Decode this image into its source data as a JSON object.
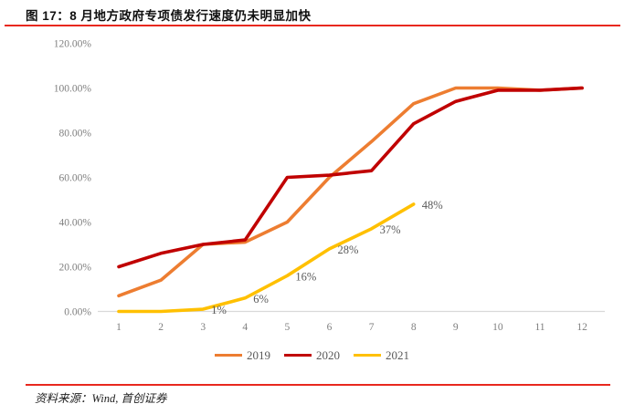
{
  "title": {
    "text": "图 17：8 月地方政府专项债发行速度仍未明显加快"
  },
  "colors": {
    "accent_red": "#E8281E",
    "axis_line": "#D9D9D9",
    "tick_text": "#7F7F7F",
    "label_text": "#595959"
  },
  "chart_data": {
    "type": "line",
    "title": "",
    "xlabel": "",
    "ylabel": "",
    "categories": [
      "1",
      "2",
      "3",
      "4",
      "5",
      "6",
      "7",
      "8",
      "9",
      "10",
      "11",
      "12"
    ],
    "ylim": [
      0,
      120
    ],
    "ytick_values": [
      0,
      20,
      40,
      60,
      80,
      100,
      120
    ],
    "ytick_labels": [
      "0.00%",
      "20.00%",
      "40.00%",
      "60.00%",
      "80.00%",
      "100.00%",
      "120.00%"
    ],
    "grid": false,
    "legend_position": "bottom",
    "series": [
      {
        "name": "2019",
        "color": "#ED7D31",
        "values": [
          7,
          14,
          30,
          31,
          40,
          60,
          76,
          93,
          100,
          100,
          99,
          100
        ],
        "data_labels": []
      },
      {
        "name": "2020",
        "color": "#C00000",
        "values": [
          20,
          26,
          30,
          32,
          60,
          61,
          63,
          84,
          94,
          99,
          99,
          100
        ],
        "data_labels": []
      },
      {
        "name": "2021",
        "color": "#FFC000",
        "values": [
          0,
          0,
          1,
          6,
          16,
          28,
          37,
          48
        ],
        "data_labels": [
          "",
          "",
          "1%",
          "6%",
          "16%",
          "28%",
          "37%",
          "48%"
        ]
      }
    ]
  },
  "footer": {
    "source": "资料来源：Wind, 首创证券"
  }
}
